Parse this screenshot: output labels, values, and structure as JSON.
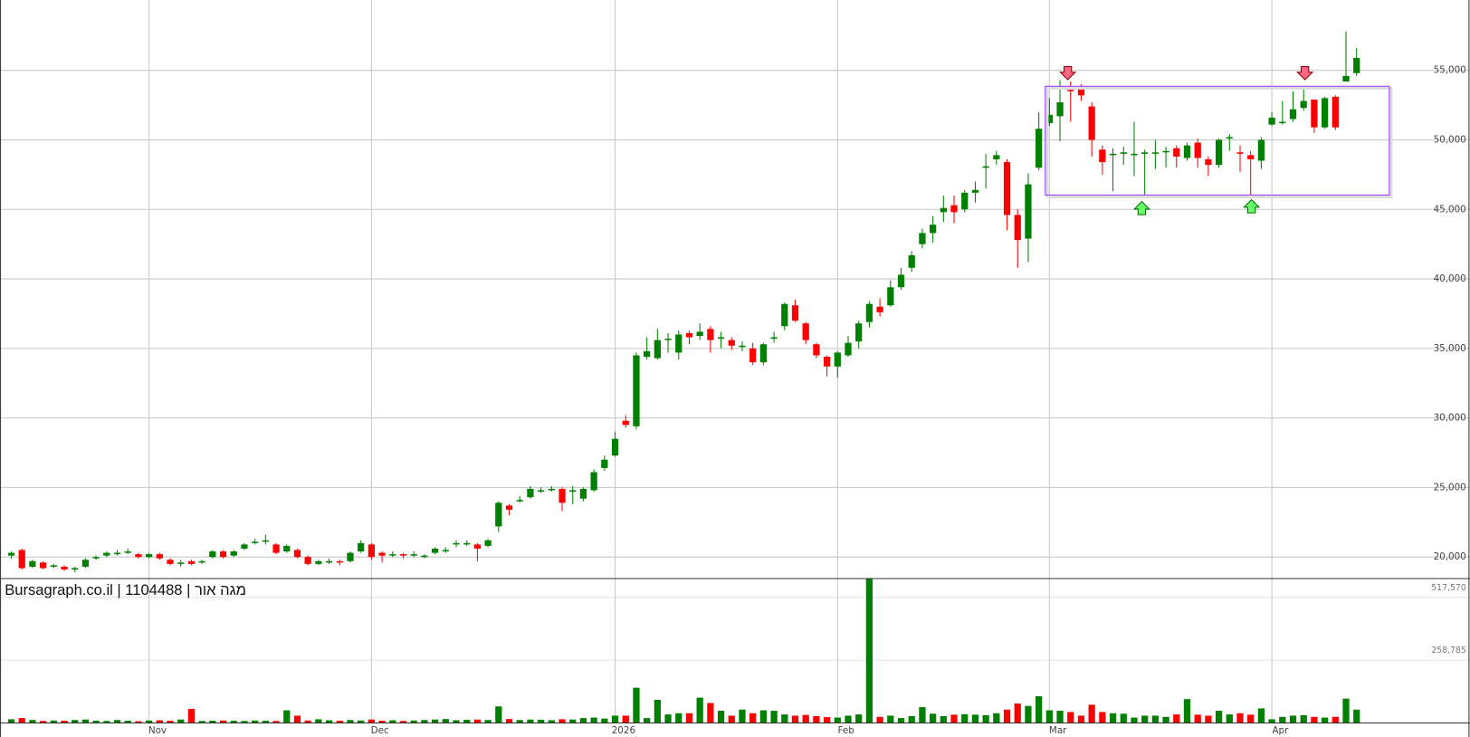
{
  "chart_data": {
    "type": "candlestick",
    "watermark": "Bursagraph.co.il | 1104488 | מגה אור",
    "categories": [
      null,
      null,
      null,
      null,
      null,
      null,
      null,
      null,
      null,
      null,
      null,
      null,
      null,
      "Nov",
      null,
      null,
      null,
      null,
      null,
      null,
      null,
      null,
      null,
      null,
      null,
      null,
      null,
      null,
      null,
      null,
      null,
      null,
      null,
      null,
      "Dec",
      null,
      null,
      null,
      null,
      null,
      null,
      null,
      null,
      null,
      null,
      null,
      null,
      null,
      null,
      null,
      null,
      null,
      null,
      null,
      null,
      null,
      null,
      "2026",
      null,
      null,
      null,
      null,
      null,
      null,
      null,
      null,
      null,
      null,
      null,
      null,
      null,
      null,
      null,
      null,
      null,
      null,
      null,
      null,
      "Feb",
      null,
      null,
      null,
      null,
      null,
      null,
      null,
      null,
      null,
      null,
      null,
      null,
      null,
      null,
      null,
      null,
      null,
      null,
      null,
      "Mar",
      null,
      null,
      null,
      null,
      null,
      null,
      null,
      null,
      null,
      null,
      null,
      null,
      null,
      null,
      null,
      null,
      null,
      null,
      null,
      null,
      "Apr",
      null,
      null,
      null,
      null,
      null,
      null,
      null,
      null
    ],
    "open": [
      20100,
      20500,
      19300,
      19600,
      19300,
      19300,
      19100,
      19300,
      19900,
      20100,
      20300,
      20400,
      20200,
      20000,
      20200,
      19800,
      19500,
      19700,
      19600,
      20000,
      20400,
      20100,
      20600,
      21000,
      21200,
      20900,
      20400,
      20500,
      20000,
      19500,
      19700,
      19700,
      19700,
      20400,
      20900,
      20300,
      20200,
      20200,
      20200,
      20100,
      20300,
      20500,
      21000,
      21000,
      20900,
      20800,
      22200,
      23700,
      24000,
      24300,
      24800,
      24900,
      24900,
      24800,
      24200,
      24800,
      26400,
      27300,
      29800,
      29400,
      34400,
      34300,
      35700,
      34700,
      36100,
      35900,
      36400,
      35800,
      35600,
      35200,
      35000,
      34000,
      35800,
      36600,
      38100,
      36800,
      35300,
      34400,
      33700,
      34500,
      35500,
      36900,
      38000,
      38100,
      39400,
      40800,
      42500,
      43300,
      44800,
      45300,
      45000,
      46200,
      48000,
      48600,
      48400,
      44600,
      42900,
      48000,
      51200,
      51700,
      53600,
      53700,
      52400,
      49300,
      49000,
      49100,
      49000,
      49100,
      49100,
      49200,
      49400,
      48700,
      49800,
      48600,
      48200,
      50200,
      49100,
      48900,
      48500,
      51100,
      51300,
      51500,
      52300,
      52900,
      50900,
      53100,
      54200,
      54800
    ],
    "close": [
      20300,
      19200,
      19700,
      19200,
      19400,
      19100,
      19200,
      19800,
      20000,
      20300,
      20300,
      20400,
      20000,
      20200,
      19900,
      19500,
      19600,
      19500,
      19700,
      20400,
      20000,
      20400,
      20900,
      21100,
      21200,
      20300,
      20800,
      20000,
      19500,
      19700,
      19700,
      19600,
      20300,
      21000,
      20000,
      20100,
      20200,
      20100,
      20200,
      20100,
      20600,
      20500,
      21000,
      21000,
      20600,
      21200,
      23900,
      23400,
      24100,
      24900,
      24800,
      24900,
      23900,
      24800,
      24900,
      26100,
      27000,
      28500,
      29500,
      34500,
      34800,
      35600,
      35700,
      36000,
      35800,
      36200,
      35600,
      35800,
      35200,
      35200,
      34000,
      35300,
      35800,
      38200,
      37000,
      35600,
      34500,
      33700,
      34700,
      35400,
      36800,
      38200,
      37600,
      39400,
      40300,
      41700,
      43300,
      43900,
      45100,
      44800,
      46200,
      46400,
      48100,
      48900,
      44600,
      42800,
      46800,
      50800,
      51800,
      52700,
      53500,
      53200,
      50000,
      48400,
      49000,
      49100,
      49000,
      49100,
      49100,
      49200,
      48800,
      49600,
      48700,
      48200,
      50000,
      50200,
      49000,
      48600,
      50000,
      51600,
      51300,
      52200,
      52800,
      50900,
      53000,
      50900,
      54600,
      55900
    ],
    "high": [
      20400,
      20600,
      19800,
      19700,
      19500,
      19400,
      19300,
      19900,
      20100,
      20400,
      20500,
      20600,
      20300,
      20300,
      20300,
      19900,
      19800,
      19800,
      19800,
      20500,
      20500,
      20500,
      21000,
      21300,
      21600,
      21000,
      20900,
      20600,
      20100,
      19800,
      19900,
      19800,
      20400,
      21200,
      21000,
      20400,
      20400,
      20300,
      20400,
      20200,
      20700,
      20700,
      21200,
      21200,
      21000,
      21300,
      24000,
      23800,
      24400,
      25100,
      25000,
      25100,
      25000,
      25100,
      25000,
      26300,
      27300,
      29000,
      30200,
      34700,
      35800,
      36400,
      36100,
      36300,
      36300,
      36800,
      36600,
      36200,
      35800,
      35500,
      35400,
      35400,
      36200,
      38300,
      38500,
      36900,
      35400,
      34500,
      34800,
      35900,
      37000,
      38400,
      38600,
      39900,
      40800,
      42000,
      43600,
      44500,
      46000,
      46000,
      46400,
      47000,
      49000,
      49200,
      48600,
      45000,
      47600,
      52000,
      53000,
      54300,
      54200,
      54000,
      52700,
      49600,
      49400,
      49500,
      51300,
      49300,
      50000,
      49500,
      49600,
      49800,
      50100,
      48800,
      50100,
      50400,
      49600,
      49200,
      50200,
      52000,
      52800,
      53500,
      53700,
      52900,
      53100,
      53200,
      57800,
      56600
    ],
    "low": [
      19900,
      19100,
      19200,
      19100,
      19200,
      19000,
      18900,
      19200,
      19800,
      20000,
      20100,
      20200,
      19900,
      19900,
      19800,
      19400,
      19300,
      19400,
      19500,
      19900,
      19900,
      20000,
      20500,
      20900,
      20900,
      20200,
      20300,
      19900,
      19400,
      19400,
      19500,
      19400,
      19600,
      20300,
      19800,
      19600,
      20000,
      19900,
      20000,
      19900,
      20200,
      20300,
      20700,
      20800,
      19700,
      20700,
      21800,
      23000,
      23900,
      24200,
      24600,
      24700,
      23300,
      23800,
      24000,
      24700,
      26200,
      27200,
      29300,
      29200,
      34200,
      34200,
      34700,
      34200,
      35300,
      35600,
      34700,
      35000,
      34900,
      34800,
      33800,
      33800,
      35400,
      36300,
      36900,
      35300,
      34300,
      33000,
      32900,
      34400,
      35000,
      36500,
      37300,
      38000,
      39200,
      40500,
      42200,
      42600,
      44100,
      44000,
      44800,
      45500,
      46500,
      48200,
      43500,
      40800,
      41200,
      47800,
      51000,
      49900,
      51300,
      52800,
      48800,
      47500,
      46300,
      48200,
      47400,
      46000,
      47900,
      48000,
      48000,
      48500,
      48000,
      47400,
      48000,
      49200,
      47700,
      46000,
      47900,
      51000,
      51100,
      51300,
      52100,
      50500,
      50800,
      50700,
      54200,
      54600
    ],
    "volume": [
      15000,
      20000,
      12000,
      8000,
      10000,
      9000,
      12000,
      14000,
      9000,
      8000,
      12000,
      9000,
      7000,
      10000,
      11000,
      9000,
      14000,
      58000,
      8000,
      9000,
      10000,
      9000,
      8000,
      10000,
      9000,
      8000,
      52000,
      30000,
      10000,
      15000,
      11000,
      9000,
      12000,
      10000,
      14000,
      9000,
      11000,
      8000,
      10000,
      12000,
      14000,
      16000,
      11000,
      13000,
      14000,
      12000,
      68000,
      16000,
      12000,
      14000,
      13000,
      11000,
      15000,
      14000,
      20000,
      22000,
      18000,
      30000,
      30000,
      145000,
      20000,
      95000,
      35000,
      40000,
      40000,
      104000,
      82000,
      50000,
      30000,
      55000,
      40000,
      52000,
      50000,
      35000,
      30000,
      33000,
      28000,
      24000,
      22000,
      30000,
      35000,
      595000,
      25000,
      30000,
      20000,
      28000,
      65000,
      38000,
      28000,
      34000,
      36000,
      34000,
      32000,
      40000,
      55000,
      80000,
      70000,
      110000,
      52000,
      50000,
      45000,
      30000,
      75000,
      45000,
      40000,
      38000,
      22000,
      30000,
      30000,
      25000,
      35000,
      98000,
      34000,
      30000,
      50000,
      35000,
      40000,
      34000,
      60000,
      15000,
      25000,
      30000,
      32000,
      25000,
      22000,
      25000,
      100000,
      55000
    ],
    "up_color": "#008000",
    "down_color": "#ff0000",
    "ylim": [
      18450,
      60060
    ],
    "yticks": [
      {
        "value": 20000,
        "label": "20,000"
      },
      {
        "value": 25000,
        "label": "25,000"
      },
      {
        "value": 30000,
        "label": "30,000"
      },
      {
        "value": 35000,
        "label": "35,000"
      },
      {
        "value": 40000,
        "label": "40,000"
      },
      {
        "value": 45000,
        "label": "45,000"
      },
      {
        "value": 50000,
        "label": "50,000"
      },
      {
        "value": 55000,
        "label": "55,000"
      }
    ],
    "volume_ylim": [
      0,
      595000
    ],
    "volume_yticks": [
      {
        "value": 258785,
        "label": "258,785"
      },
      {
        "value": 517570,
        "label": "517,570"
      }
    ],
    "grid": true
  }
}
